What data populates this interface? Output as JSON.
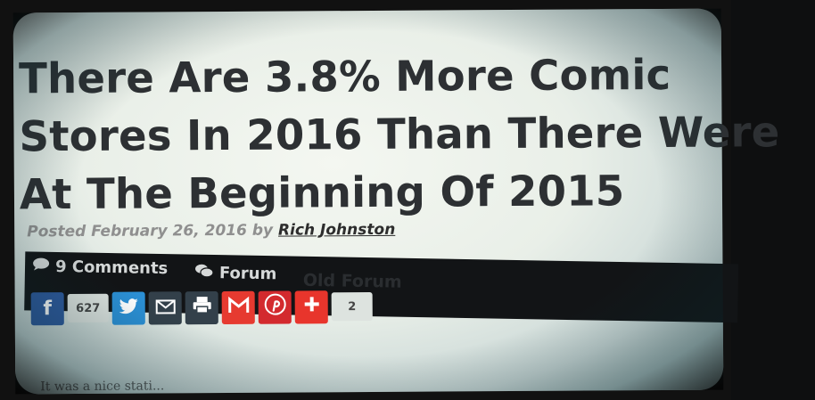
{
  "article": {
    "headline_lines": [
      "There Are 3.8% More Comic",
      "Stores In 2016 Than There Were",
      "At The Beginning Of 2015"
    ],
    "posted_prefix": "Posted",
    "date": "February 26, 2016",
    "by": "by",
    "author": "Rich Johnston",
    "body_start": "It was a nice stati..."
  },
  "meta_bar": {
    "comments_label": "9 Comments",
    "forum_label": "Forum",
    "ghost_label": "Old Forum"
  },
  "share": {
    "facebook_count": "627",
    "total_count": "2",
    "buttons": [
      {
        "name": "facebook",
        "color": "#2e5a9e"
      },
      {
        "name": "twitter",
        "color": "#2b8fd4"
      },
      {
        "name": "email",
        "color": "#33404a"
      },
      {
        "name": "print",
        "color": "#33404a"
      },
      {
        "name": "gmail",
        "color": "#e63a30"
      },
      {
        "name": "pinterest",
        "color": "#d32a2e"
      },
      {
        "name": "more",
        "color": "#e8352c"
      }
    ]
  }
}
